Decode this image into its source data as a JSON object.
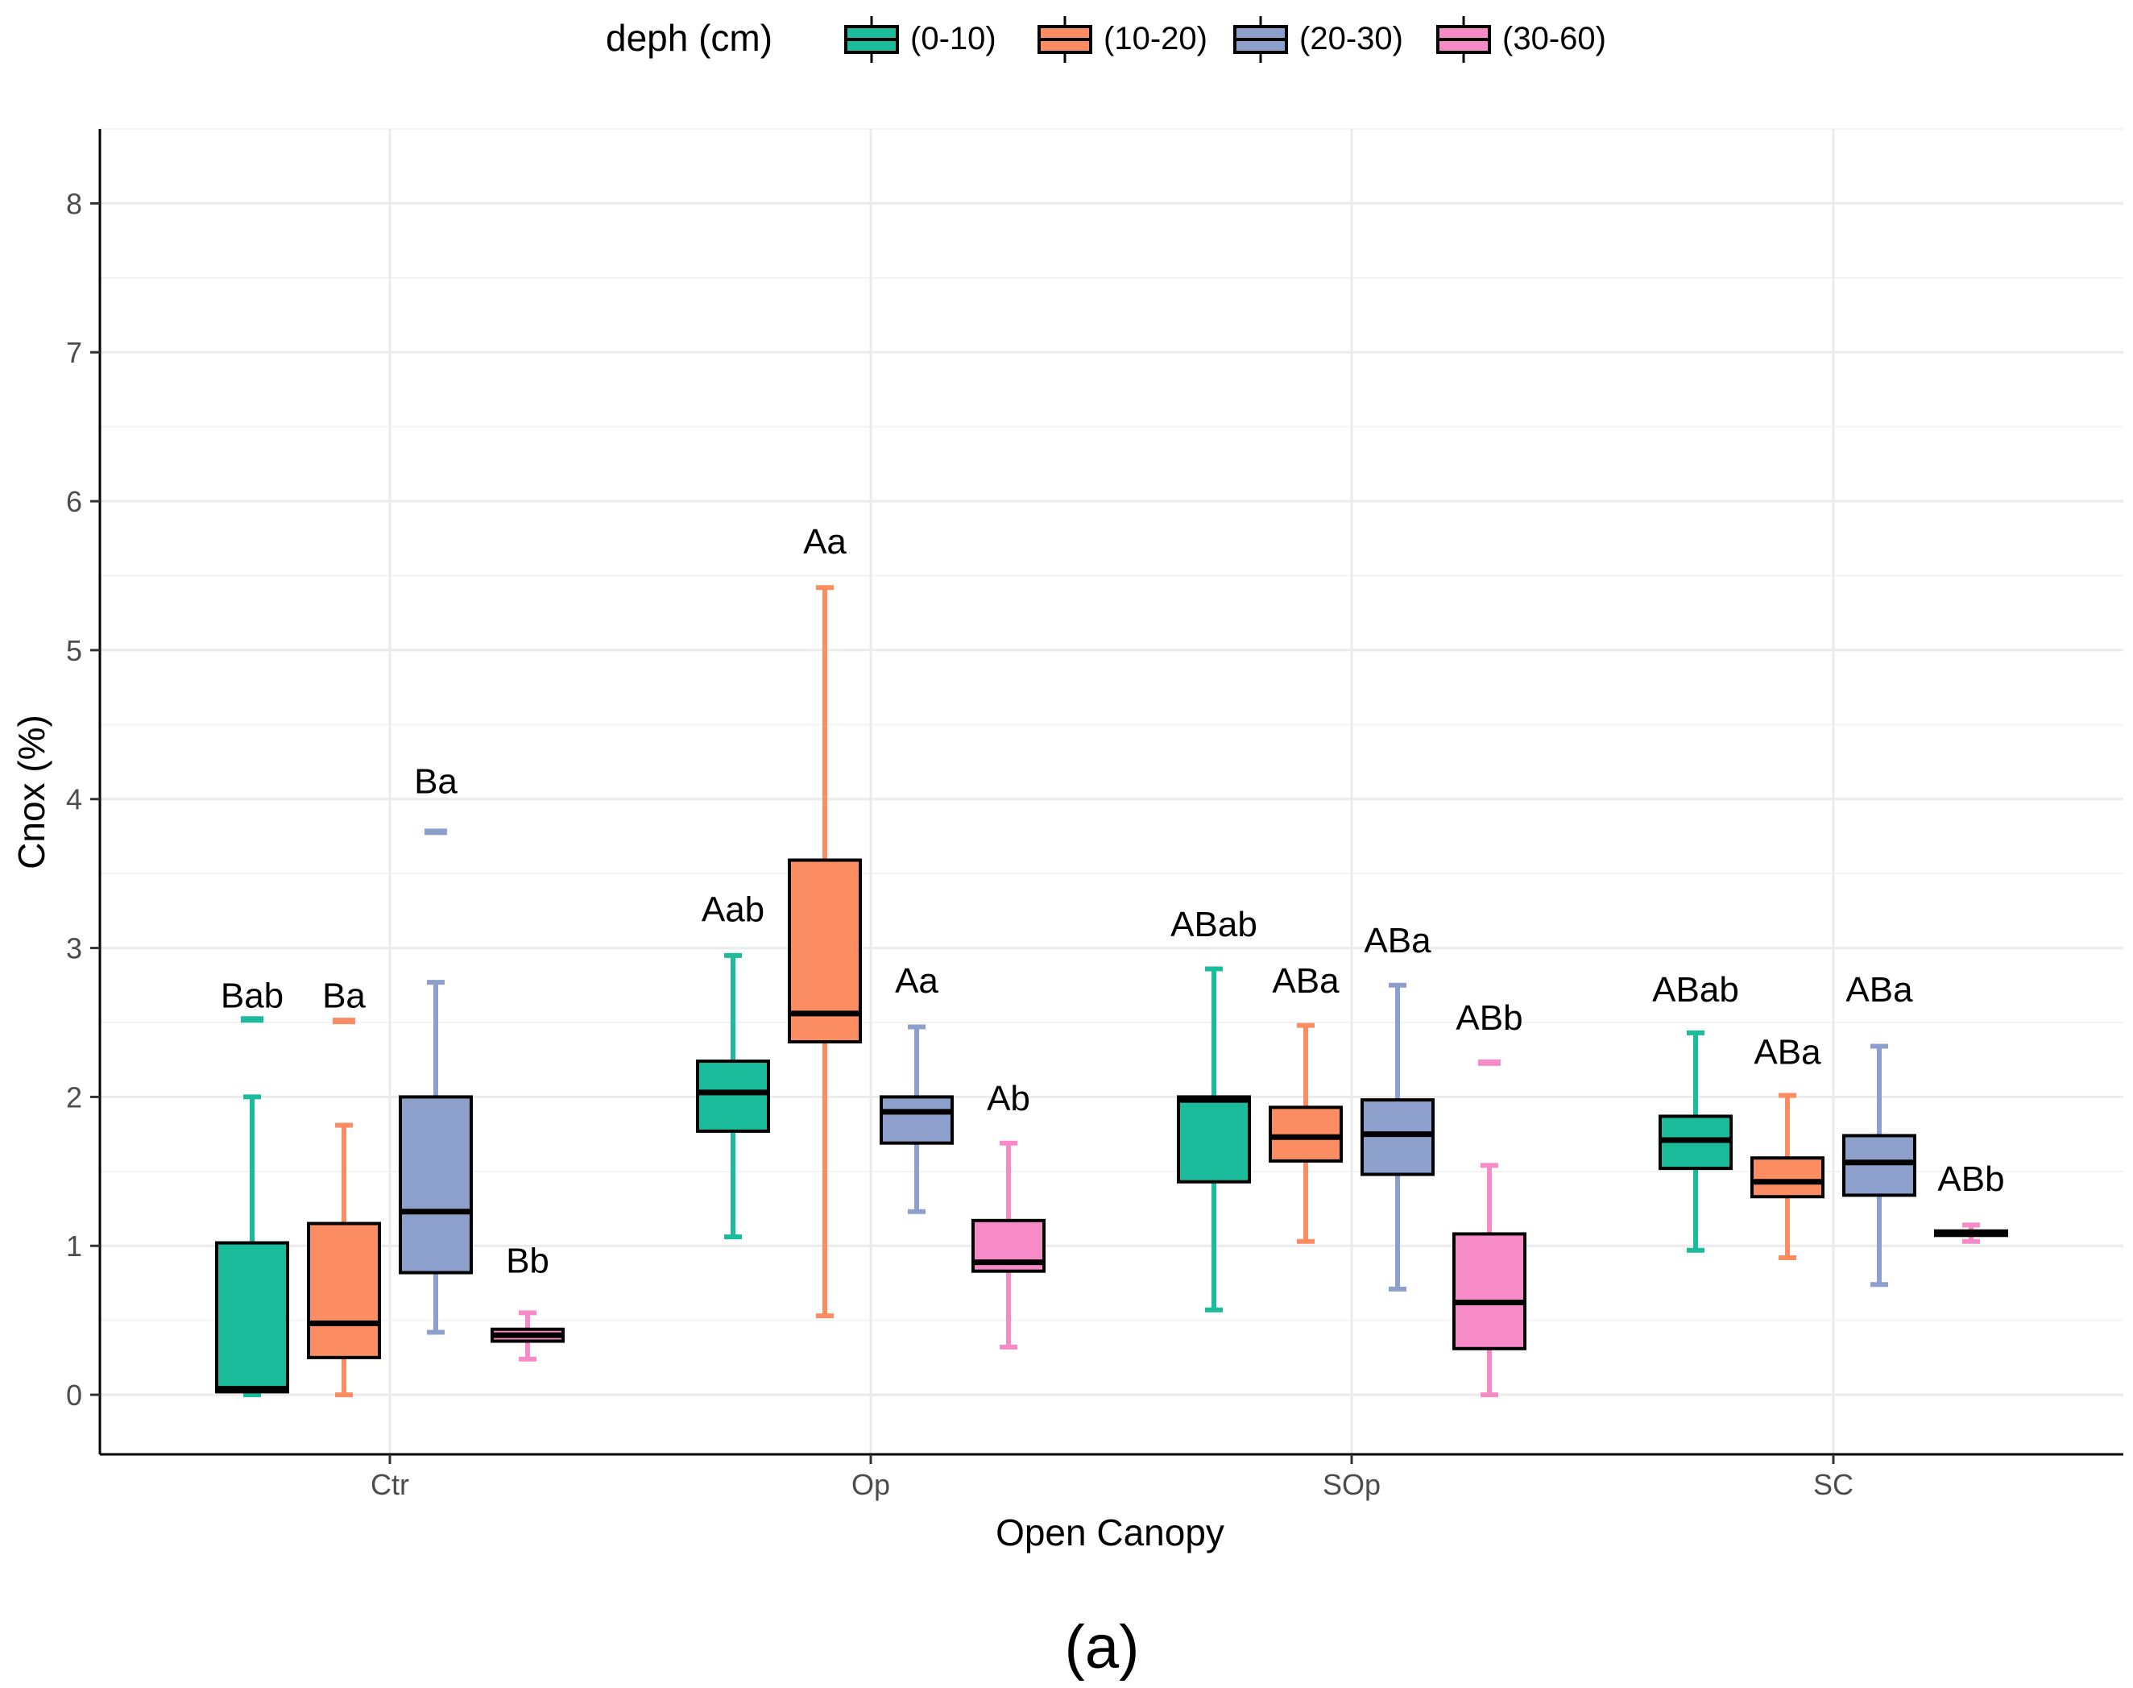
{
  "chart_data": {
    "type": "boxplot",
    "title": "",
    "caption": "(a)",
    "xlabel": "Open Canopy",
    "ylabel": "Cnox (%)",
    "ylim": [
      -0.4,
      8.5
    ],
    "y_ticks": [
      "0",
      "1",
      "2",
      "3",
      "4",
      "5",
      "6",
      "7",
      "8"
    ],
    "grid": true,
    "legend": {
      "title": "deph (cm)",
      "position": "top",
      "entries": [
        "(0-10)",
        "(10-20)",
        "(20-30)",
        "(30-60)"
      ]
    },
    "colors": [
      "#1abc9c",
      "#fc8d62",
      "#8da0cb",
      "#f78bc7"
    ],
    "categories": [
      "Ctr",
      "Op",
      "SOp",
      "SC"
    ],
    "series": [
      {
        "name": "(0-10)",
        "boxes": [
          {
            "category": "Ctr",
            "min": 0.0,
            "q1": 0.02,
            "median": 0.04,
            "q3": 1.02,
            "max": 2.0,
            "outliers": [
              2.52
            ],
            "label": "Bab",
            "label_y": 2.6
          },
          {
            "category": "Op",
            "min": 1.06,
            "q1": 1.77,
            "median": 2.03,
            "q3": 2.24,
            "max": 2.95,
            "outliers": [],
            "label": "Aab",
            "label_y": 3.18
          },
          {
            "category": "SOp",
            "min": 0.57,
            "q1": 1.43,
            "median": 1.98,
            "q3": 2.0,
            "max": 2.86,
            "outliers": [],
            "label": "ABab",
            "label_y": 3.08
          },
          {
            "category": "SC",
            "min": 0.97,
            "q1": 1.52,
            "median": 1.71,
            "q3": 1.87,
            "max": 2.43,
            "outliers": [],
            "label": "ABab",
            "label_y": 2.64
          }
        ]
      },
      {
        "name": "(10-20)",
        "boxes": [
          {
            "category": "Ctr",
            "min": 0.0,
            "q1": 0.25,
            "median": 0.48,
            "q3": 1.15,
            "max": 1.81,
            "outliers": [
              2.51
            ],
            "label": "Ba",
            "label_y": 2.6
          },
          {
            "category": "Op",
            "min": 0.53,
            "q1": 2.37,
            "median": 2.56,
            "q3": 3.59,
            "max": 5.42,
            "outliers": [],
            "label": "Aa",
            "label_y": 5.65
          },
          {
            "category": "SOp",
            "min": 1.03,
            "q1": 1.57,
            "median": 1.73,
            "q3": 1.93,
            "max": 2.48,
            "outliers": [],
            "label": "ABa",
            "label_y": 2.7
          },
          {
            "category": "SC",
            "min": 0.92,
            "q1": 1.33,
            "median": 1.43,
            "q3": 1.59,
            "max": 2.01,
            "outliers": [],
            "label": "ABa",
            "label_y": 2.22
          }
        ]
      },
      {
        "name": "(20-30)",
        "boxes": [
          {
            "category": "Ctr",
            "min": 0.42,
            "q1": 0.82,
            "median": 1.23,
            "q3": 2.0,
            "max": 2.77,
            "outliers": [
              3.78
            ],
            "label": "Ba",
            "label_y": 4.04
          },
          {
            "category": "Op",
            "min": 1.23,
            "q1": 1.69,
            "median": 1.9,
            "q3": 2.0,
            "max": 2.47,
            "outliers": [],
            "label": "Aa",
            "label_y": 2.7
          },
          {
            "category": "SOp",
            "min": 0.71,
            "q1": 1.48,
            "median": 1.75,
            "q3": 1.98,
            "max": 2.75,
            "outliers": [],
            "label": "ABa",
            "label_y": 2.97
          },
          {
            "category": "SC",
            "min": 0.74,
            "q1": 1.34,
            "median": 1.56,
            "q3": 1.74,
            "max": 2.34,
            "outliers": [],
            "label": "ABa",
            "label_y": 2.64
          }
        ]
      },
      {
        "name": "(30-60)",
        "boxes": [
          {
            "category": "Ctr",
            "min": 0.24,
            "q1": 0.36,
            "median": 0.4,
            "q3": 0.44,
            "max": 0.55,
            "outliers": [],
            "label": "Bb",
            "label_y": 0.82
          },
          {
            "category": "Op",
            "min": 0.32,
            "q1": 0.83,
            "median": 0.89,
            "q3": 1.17,
            "max": 1.69,
            "outliers": [],
            "label": "Ab",
            "label_y": 1.91
          },
          {
            "category": "SOp",
            "min": 0.0,
            "q1": 0.31,
            "median": 0.62,
            "q3": 1.08,
            "max": 1.54,
            "outliers": [
              2.23
            ],
            "label": "ABb",
            "label_y": 2.45
          },
          {
            "category": "SC",
            "min": 1.03,
            "q1": 1.07,
            "median": 1.08,
            "q3": 1.1,
            "max": 1.14,
            "outliers": [],
            "label": "ABb",
            "label_y": 1.37
          }
        ]
      }
    ]
  }
}
